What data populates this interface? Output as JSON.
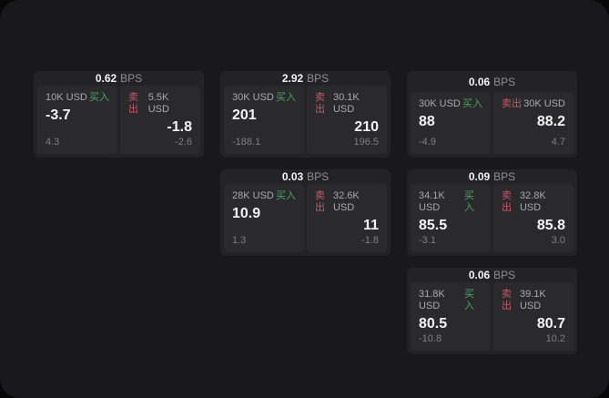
{
  "labels": {
    "bps_unit": "BPS",
    "buy": "买入",
    "sell": "卖出"
  },
  "colors": {
    "page_bg": "#070707",
    "window_bg": "#19191b",
    "card_bg": "#232325",
    "tile_bg": "#2a2a2c",
    "text_primary": "#f4f4f5",
    "text_secondary": "#a9a9ad",
    "text_muted": "#7f7f83",
    "buy_green": "#4ca464",
    "sell_red": "#c4586a"
  },
  "cards": [
    {
      "bps": "0.62",
      "buy": {
        "amount": "10K USD",
        "price": "-3.7",
        "delta": "4.3"
      },
      "sell": {
        "amount": "5.5K USD",
        "price": "-1.8",
        "delta": "-2.6"
      }
    },
    {
      "bps": "2.92",
      "buy": {
        "amount": "30K USD",
        "price": "201",
        "delta": "-188.1"
      },
      "sell": {
        "amount": "30.1K USD",
        "price": "210",
        "delta": "196.5"
      }
    },
    {
      "bps": "0.06",
      "buy": {
        "amount": "30K USD",
        "price": "88",
        "delta": "-4.9"
      },
      "sell": {
        "amount": "30K USD",
        "price": "88.2",
        "delta": "4.7"
      }
    },
    {
      "bps": "0.03",
      "buy": {
        "amount": "28K USD",
        "price": "10.9",
        "delta": "1.3"
      },
      "sell": {
        "amount": "32.6K USD",
        "price": "11",
        "delta": "-1.8"
      }
    },
    {
      "bps": "0.09",
      "buy": {
        "amount": "34.1K USD",
        "price": "85.5",
        "delta": "-3.1"
      },
      "sell": {
        "amount": "32.8K USD",
        "price": "85.8",
        "delta": "3.0"
      }
    },
    {
      "bps": "0.06",
      "buy": {
        "amount": "31.8K USD",
        "price": "80.5",
        "delta": "-10.8"
      },
      "sell": {
        "amount": "39.1K USD",
        "price": "80.7",
        "delta": "10.2"
      }
    }
  ]
}
